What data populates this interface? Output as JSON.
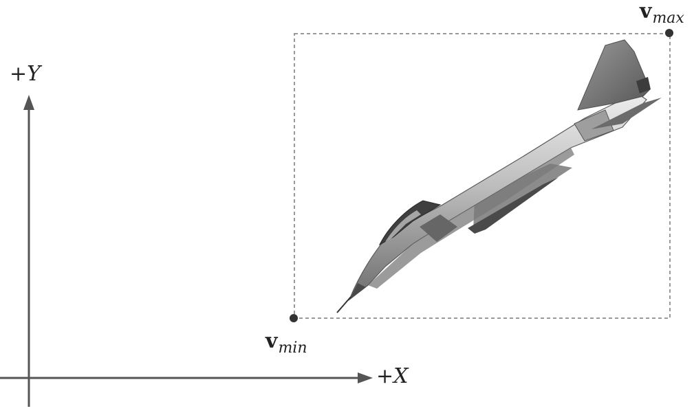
{
  "axes": {
    "y_label": "+Y",
    "x_label": "+X",
    "y_sign": "+",
    "y_var": "Y",
    "x_sign": "+",
    "x_var": "X"
  },
  "bounding_box": {
    "style": "dashed",
    "v_min": {
      "symbol": "v",
      "subscript": "min"
    },
    "v_max": {
      "symbol": "v",
      "subscript": "max"
    }
  },
  "object": {
    "icon": "fighter-jet-icon"
  },
  "colors": {
    "axis": "#555555",
    "dashed_box": "#999999",
    "corner_point": "#333333"
  }
}
